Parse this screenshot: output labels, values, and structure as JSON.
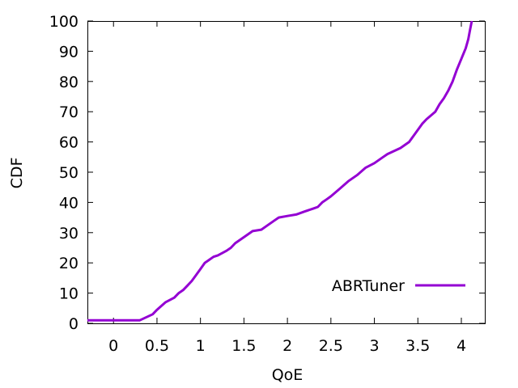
{
  "chart_data": {
    "type": "line",
    "title": "",
    "xlabel": "QoE",
    "ylabel": "CDF",
    "xlim": [
      -0.3,
      4.27
    ],
    "ylim": [
      0,
      100
    ],
    "xticks": [
      0,
      0.5,
      1,
      1.5,
      2,
      2.5,
      3,
      3.5,
      4
    ],
    "xtick_labels": [
      "0",
      "0.5",
      "1",
      "1.5",
      "2",
      "2.5",
      "3",
      "3.5",
      "4"
    ],
    "yticks": [
      0,
      10,
      20,
      30,
      40,
      50,
      60,
      70,
      80,
      90,
      100
    ],
    "ytick_labels": [
      "0",
      "10",
      "20",
      "30",
      "40",
      "50",
      "60",
      "70",
      "80",
      "90",
      "100"
    ],
    "grid": false,
    "legend_position": "bottom-right",
    "series": [
      {
        "name": "ABRTuner",
        "color": "#9400d3",
        "x": [
          -0.3,
          0.3,
          0.45,
          0.5,
          0.6,
          0.7,
          0.75,
          0.8,
          0.85,
          0.9,
          0.95,
          1.0,
          1.05,
          1.1,
          1.15,
          1.2,
          1.3,
          1.35,
          1.4,
          1.5,
          1.6,
          1.7,
          1.75,
          1.85,
          1.9,
          2.0,
          2.1,
          2.2,
          2.3,
          2.35,
          2.4,
          2.45,
          2.5,
          2.6,
          2.7,
          2.8,
          2.9,
          3.0,
          3.1,
          3.15,
          3.3,
          3.4,
          3.45,
          3.5,
          3.55,
          3.6,
          3.7,
          3.75,
          3.8,
          3.85,
          3.9,
          3.95,
          4.0,
          4.05,
          4.08,
          4.1,
          4.12
        ],
        "y": [
          1,
          1,
          3,
          4.5,
          7,
          8.5,
          10,
          11,
          12.5,
          14,
          16,
          18,
          20,
          21,
          22,
          22.5,
          24,
          25,
          26.5,
          28.5,
          30.5,
          31,
          32,
          34,
          35,
          35.5,
          36,
          37,
          38,
          38.5,
          40,
          41,
          42,
          44.5,
          47,
          49,
          51.5,
          53,
          55,
          56,
          58,
          60,
          62,
          64,
          66,
          67.5,
          70,
          72.5,
          74.5,
          77,
          80,
          84,
          87.5,
          91,
          94,
          97,
          100
        ]
      }
    ]
  }
}
